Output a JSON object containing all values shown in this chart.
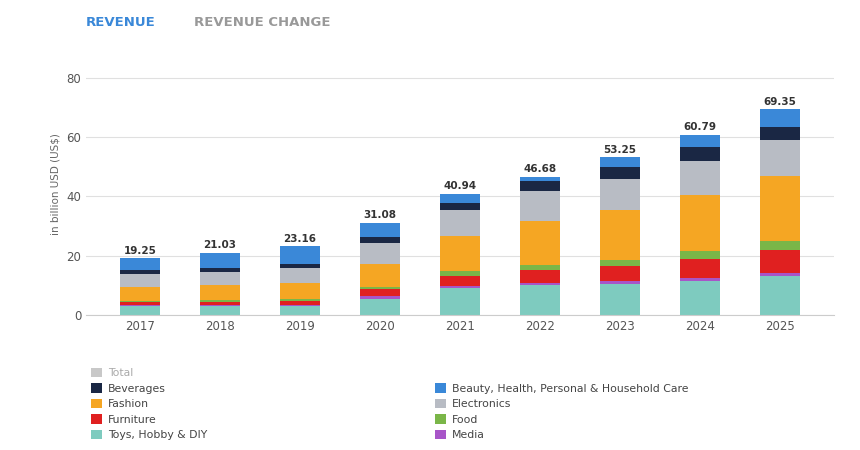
{
  "years": [
    2017,
    2018,
    2019,
    2020,
    2021,
    2022,
    2023,
    2024,
    2025
  ],
  "totals": [
    19.25,
    21.03,
    23.16,
    31.08,
    40.94,
    46.68,
    53.25,
    60.79,
    69.35
  ],
  "categories": [
    "Toys, Hobby & DIY",
    "Media",
    "Furniture",
    "Food",
    "Fashion",
    "Electronics",
    "Beverages",
    "Beauty, Health, Personal & Household Care"
  ],
  "colors": {
    "Toys, Hobby & DIY": "#7ecbbf",
    "Media": "#a855c8",
    "Furniture": "#e02020",
    "Food": "#7ab648",
    "Fashion": "#f5a623",
    "Electronics": "#b8bcc4",
    "Beverages": "#1a2744",
    "Beauty, Health, Personal & Household Care": "#3a88d8"
  },
  "values": {
    "Toys, Hobby & DIY": [
      3.0,
      3.0,
      3.2,
      5.5,
      9.0,
      10.0,
      10.5,
      11.5,
      13.0
    ],
    "Media": [
      0.3,
      0.3,
      0.3,
      0.8,
      0.8,
      0.8,
      1.0,
      1.0,
      1.0
    ],
    "Furniture": [
      1.0,
      1.2,
      1.3,
      2.5,
      3.5,
      4.5,
      5.0,
      6.5,
      8.0
    ],
    "Food": [
      0.5,
      0.5,
      0.5,
      0.5,
      1.5,
      1.5,
      2.0,
      2.5,
      3.0
    ],
    "Fashion": [
      4.5,
      5.0,
      5.5,
      8.0,
      12.0,
      15.0,
      17.0,
      19.0,
      22.0
    ],
    "Electronics": [
      4.5,
      4.5,
      5.0,
      7.0,
      8.5,
      10.0,
      10.5,
      11.5,
      12.0
    ],
    "Beverages": [
      1.5,
      1.5,
      1.5,
      2.0,
      2.5,
      3.5,
      4.0,
      4.5,
      4.5
    ],
    "Beauty, Health, Personal & Household Care": [
      3.95,
      5.03,
      5.86,
      4.78,
      3.14,
      1.38,
      3.25,
      4.29,
      5.85
    ]
  },
  "ylabel": "in billion USD (US$)",
  "ylim": [
    0,
    88
  ],
  "yticks": [
    0,
    20,
    40,
    60,
    80
  ],
  "tab_revenue": "REVENUE",
  "tab_revenue_change": "REVENUE CHANGE",
  "tab_revenue_color": "#3a88d8",
  "tab_revenue_change_color": "#999999",
  "background_color": "#ffffff",
  "bar_width": 0.5,
  "legend_items_left": [
    {
      "label": "Total",
      "color": "#c8c8c8",
      "gray": true
    },
    {
      "label": "Beverages",
      "color": "#1a2744",
      "gray": false
    },
    {
      "label": "Fashion",
      "color": "#f5a623",
      "gray": false
    },
    {
      "label": "Furniture",
      "color": "#e02020",
      "gray": false
    },
    {
      "label": "Toys, Hobby & DIY",
      "color": "#7ecbbf",
      "gray": false
    }
  ],
  "legend_items_right": [
    {
      "label": "Beauty, Health, Personal & Household Care",
      "color": "#3a88d8",
      "gray": false
    },
    {
      "label": "Electronics",
      "color": "#b8bcc4",
      "gray": false
    },
    {
      "label": "Food",
      "color": "#7ab648",
      "gray": false
    },
    {
      "label": "Media",
      "color": "#a855c8",
      "gray": false
    }
  ]
}
